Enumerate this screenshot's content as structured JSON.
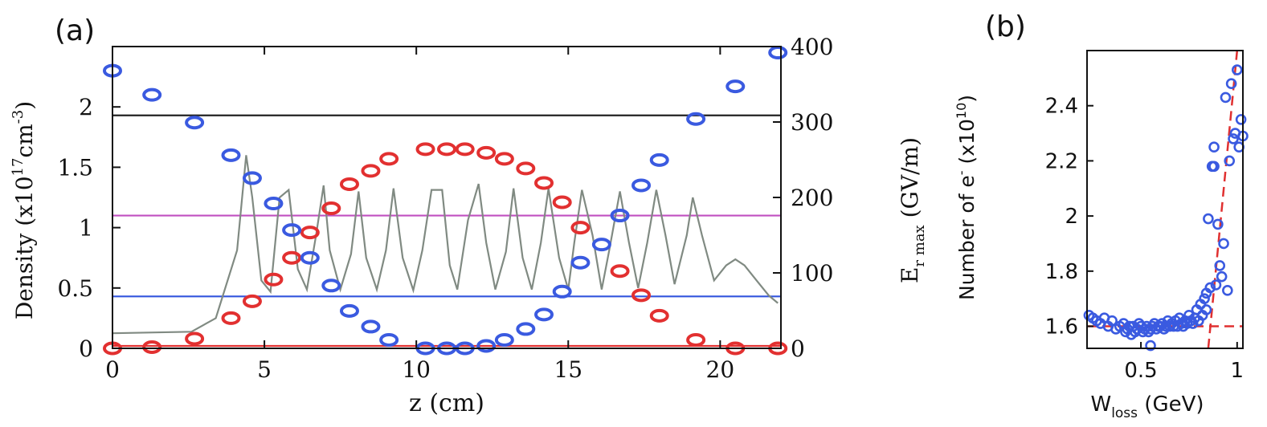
{
  "panel_a": {
    "label": "(a)",
    "xlabel": "z (cm)",
    "ylabel_left": "Density (x10",
    "ylabel_left_exp1": "17",
    "ylabel_left_mid": "cm",
    "ylabel_left_exp2": "-3",
    "ylabel_left_end": ")",
    "ylabel_right_main": "E",
    "ylabel_right_sub": "r max",
    "ylabel_right_unit": " (GV/m)"
  },
  "panel_b": {
    "label": "(b)",
    "xlabel_main": "W",
    "xlabel_sub": "loss",
    "xlabel_unit": " (GeV)",
    "ylabel_main": "Number of e",
    "ylabel_sup": "-",
    "ylabel_mid": " (x10",
    "ylabel_exp": "10",
    "ylabel_end": ")"
  },
  "chart_data": [
    {
      "type": "scatter",
      "panel": "(a)",
      "xlabel": "z (cm)",
      "ylabel": "Density (x10^17cm^-3)",
      "y2label": "E_r max (GV/m)",
      "xlim": [
        0,
        22
      ],
      "ylim": [
        0,
        2.5
      ],
      "y2lim": [
        0,
        400
      ],
      "xticks": [
        0,
        5,
        10,
        15,
        20
      ],
      "yticks": [
        0,
        0.5,
        1,
        1.5,
        2
      ],
      "y2ticks": [
        0,
        100,
        200,
        300,
        400
      ],
      "hlines": [
        {
          "y": 1.93,
          "color": "#222222"
        },
        {
          "y": 1.1,
          "color": "#c050c0"
        },
        {
          "y": 0.43,
          "color": "#3355dd"
        },
        {
          "y": 0.02,
          "color": "#e23030"
        }
      ],
      "series": [
        {
          "color": "#e23030",
          "x": [
            0,
            1.3,
            2.7,
            3.9,
            4.6,
            5.3,
            5.9,
            6.5,
            7.2,
            7.8,
            8.5,
            9.1,
            10.3,
            11.0,
            11.6,
            12.3,
            12.9,
            13.6,
            14.2,
            14.8,
            15.4,
            16.7,
            17.4,
            18.0,
            19.2,
            20.5,
            21.9
          ],
          "y": [
            0,
            0.01,
            0.08,
            0.25,
            0.39,
            0.57,
            0.75,
            0.96,
            1.16,
            1.36,
            1.47,
            1.57,
            1.65,
            1.65,
            1.65,
            1.62,
            1.57,
            1.49,
            1.37,
            1.21,
            1.0,
            0.64,
            0.44,
            0.27,
            0.07,
            0.0,
            0.0
          ]
        },
        {
          "color": "#3a5ae0",
          "x": [
            0,
            1.3,
            2.7,
            3.9,
            4.6,
            5.3,
            5.9,
            6.5,
            7.2,
            7.8,
            8.5,
            9.1,
            10.3,
            11.0,
            11.6,
            12.3,
            12.9,
            13.6,
            14.2,
            14.8,
            15.4,
            16.1,
            16.7,
            17.4,
            18.0,
            19.2,
            20.5,
            21.9
          ],
          "y": [
            2.3,
            2.1,
            1.87,
            1.6,
            1.41,
            1.2,
            0.98,
            0.75,
            0.52,
            0.31,
            0.18,
            0.07,
            0.0,
            0.0,
            0.0,
            0.02,
            0.07,
            0.16,
            0.28,
            0.47,
            0.71,
            0.86,
            1.1,
            1.35,
            1.56,
            1.9,
            2.17,
            2.45
          ]
        }
      ],
      "line_y2": {
        "color": "#808a82",
        "x": [
          0,
          2.6,
          3.4,
          4.1,
          4.4,
          4.6,
          4.9,
          5.2,
          5.5,
          5.8,
          6.1,
          6.4,
          6.7,
          6.95,
          7.15,
          7.5,
          7.85,
          8.1,
          8.35,
          8.7,
          9.0,
          9.25,
          9.55,
          9.9,
          10.2,
          10.5,
          10.85,
          11.1,
          11.35,
          11.7,
          12.05,
          12.3,
          12.6,
          12.95,
          13.2,
          13.5,
          13.8,
          14.1,
          14.35,
          14.7,
          15.0,
          15.2,
          15.45,
          15.8,
          16.1,
          16.35,
          16.7,
          17.0,
          17.3,
          17.6,
          17.9,
          18.2,
          18.5,
          18.9,
          19.1,
          19.4,
          19.8,
          20.2,
          20.5,
          20.8,
          21.2,
          21.6,
          21.9
        ],
        "y": [
          20,
          22,
          40,
          130,
          256,
          200,
          90,
          75,
          200,
          210,
          105,
          78,
          150,
          216,
          130,
          78,
          125,
          208,
          120,
          78,
          130,
          212,
          120,
          77,
          130,
          210,
          210,
          110,
          78,
          170,
          218,
          140,
          78,
          128,
          212,
          120,
          78,
          140,
          212,
          120,
          78,
          140,
          210,
          150,
          78,
          130,
          208,
          140,
          80,
          140,
          210,
          150,
          85,
          150,
          200,
          150,
          90,
          110,
          118,
          110,
          90,
          70,
          60
        ]
      }
    },
    {
      "type": "scatter",
      "panel": "(b)",
      "xlabel": "W_loss (GeV)",
      "ylabel": "Number of e^- (x10^10)",
      "xlim": [
        0.22,
        1.03
      ],
      "ylim": [
        1.52,
        2.6
      ],
      "xticks": [
        0.5,
        1
      ],
      "xticklabels": [
        "0.5",
        "1"
      ],
      "yticks": [
        1.6,
        1.8,
        2,
        2.2,
        2.4
      ],
      "yticklabels": [
        "1.6",
        "1.8",
        "2",
        "2.2",
        "2.4"
      ],
      "fit_lines": [
        {
          "color": "#e03030",
          "style": "dashed",
          "x": [
            0.22,
            1.03
          ],
          "y": [
            1.6,
            1.6
          ]
        },
        {
          "color": "#e03030",
          "style": "dashed",
          "x": [
            0.85,
            1.0
          ],
          "y": [
            1.52,
            2.6
          ]
        }
      ],
      "series": [
        {
          "color": "#3a5ae0",
          "x": [
            0.23,
            0.25,
            0.27,
            0.29,
            0.31,
            0.33,
            0.35,
            0.37,
            0.39,
            0.41,
            0.42,
            0.43,
            0.44,
            0.45,
            0.46,
            0.47,
            0.48,
            0.49,
            0.5,
            0.51,
            0.52,
            0.53,
            0.54,
            0.55,
            0.55,
            0.56,
            0.57,
            0.58,
            0.59,
            0.6,
            0.61,
            0.62,
            0.63,
            0.64,
            0.65,
            0.66,
            0.67,
            0.68,
            0.69,
            0.7,
            0.71,
            0.72,
            0.73,
            0.74,
            0.75,
            0.76,
            0.77,
            0.78,
            0.79,
            0.8,
            0.81,
            0.82,
            0.83,
            0.84,
            0.84,
            0.85,
            0.86,
            0.87,
            0.88,
            0.88,
            0.89,
            0.9,
            0.91,
            0.92,
            0.93,
            0.94,
            0.95,
            0.96,
            0.97,
            0.98,
            0.99,
            1.0,
            1.01,
            1.02,
            1.03
          ],
          "y": [
            1.64,
            1.63,
            1.62,
            1.61,
            1.63,
            1.6,
            1.62,
            1.59,
            1.6,
            1.61,
            1.58,
            1.59,
            1.6,
            1.57,
            1.6,
            1.58,
            1.59,
            1.61,
            1.6,
            1.58,
            1.59,
            1.6,
            1.58,
            1.59,
            1.53,
            1.6,
            1.61,
            1.59,
            1.6,
            1.6,
            1.61,
            1.59,
            1.6,
            1.62,
            1.6,
            1.61,
            1.6,
            1.62,
            1.6,
            1.63,
            1.61,
            1.6,
            1.62,
            1.61,
            1.64,
            1.62,
            1.61,
            1.63,
            1.66,
            1.62,
            1.68,
            1.64,
            1.7,
            1.72,
            1.66,
            1.99,
            1.74,
            2.18,
            2.25,
            2.18,
            1.75,
            1.97,
            1.82,
            1.78,
            1.9,
            2.43,
            1.73,
            2.2,
            2.48,
            2.28,
            2.3,
            2.53,
            2.25,
            2.35,
            2.29
          ]
        }
      ]
    }
  ]
}
